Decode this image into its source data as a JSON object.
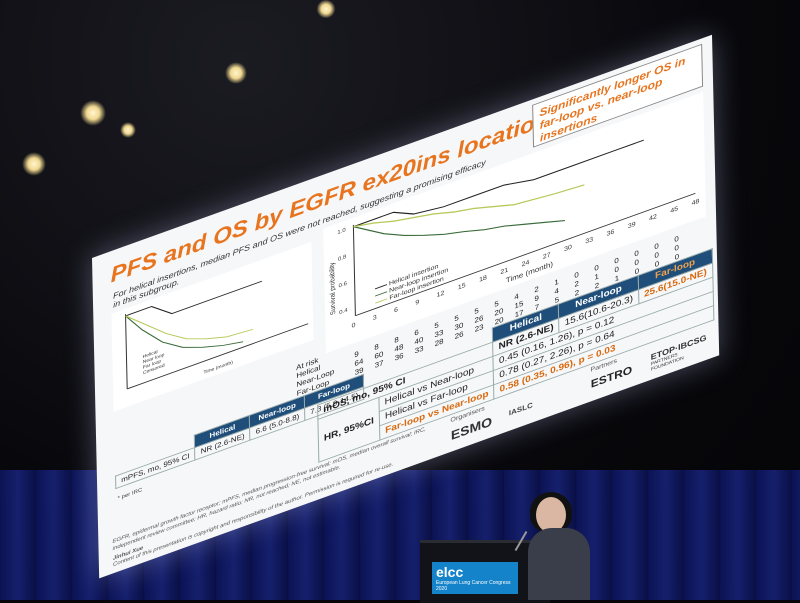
{
  "slide": {
    "title": "PFS and OS by EGFR ex20ins locations",
    "subtitle": "For helical insertions, median PFS and OS were not reached, suggesting a promising efficacy in this subgroup.",
    "callout": "Significantly longer OS in far-loop vs. near-loop insertions",
    "pfs_table": {
      "headers": [
        "Helical",
        "Near-loop",
        "Far-loop"
      ],
      "row_label": "mPFS, mo, 95% CI",
      "values": [
        "NR (2.6-NE)",
        "6.6 (5.0-8.8)",
        "7.3 (5.9-14.5)"
      ],
      "note": "* per IRC"
    },
    "os_table": {
      "headers": [
        "Helical",
        "Near-loop",
        "Far-loop"
      ],
      "mos_label": "mOS, mo, 95% CI",
      "mos_values": [
        "NR (2.6-NE)",
        "15.6(10.6-20.3)",
        "25.6(15.0-NE)"
      ],
      "hr_label": "HR, 95%CI",
      "comparisons": [
        {
          "label": "Helical vs Near-loop",
          "value": "0.45 (0.16, 1.26), p = 0.12"
        },
        {
          "label": "Helical vs Far-loop",
          "value": "0.78 (0.27, 2.26), p = 0.64"
        },
        {
          "label": "Far-loop vs Near-loop",
          "value": "0.58 (0.35, 0.96), p = 0.03"
        }
      ]
    },
    "os_chart": {
      "ylabel": "Survival probability",
      "xlabel": "Time (month)",
      "legend": [
        "Helical insertion",
        "Near-loop insertion",
        "Far-loop insertion"
      ],
      "ticks": [
        "0",
        "3",
        "6",
        "9",
        "12",
        "15",
        "18",
        "21",
        "24",
        "27",
        "30",
        "33",
        "36",
        "39",
        "42",
        "45",
        "48"
      ],
      "at_risk_label": "At risk",
      "at_risk_rows": [
        {
          "name": "Helical",
          "values": [
            "9",
            "8",
            "8",
            "6",
            "5",
            "5",
            "5",
            "5",
            "4",
            "2",
            "1",
            "0",
            "0",
            "0",
            "0",
            "0",
            "0"
          ]
        },
        {
          "name": "Near-Loop",
          "values": [
            "64",
            "60",
            "48",
            "40",
            "33",
            "30",
            "26",
            "20",
            "15",
            "9",
            "4",
            "2",
            "1",
            "0",
            "0",
            "0",
            "0"
          ]
        },
        {
          "name": "Far-Loop",
          "values": [
            "39",
            "37",
            "36",
            "33",
            "28",
            "26",
            "23",
            "20",
            "17",
            "7",
            "5",
            "2",
            "2",
            "1",
            "0",
            "0",
            "0"
          ]
        }
      ],
      "y_ticks": [
        "1.0",
        "0.8",
        "0.6",
        "0.4"
      ]
    },
    "pfs_chart": {
      "legend": [
        "Helical",
        "Near loop",
        "Far loop",
        "Censored"
      ],
      "xlabel": "Time (month)"
    },
    "footnote": "EGFR, epidermal growth factor receptor; mPFS, median progression-free survival; mOS, median overall survival; IRC, independent review committee; HR, hazard ratio; NR, not reached; NE, not estimable.",
    "author": "Jinhui Xue",
    "copyright": "Content of this presentation is copyright and responsibility of the author. Permission is required for re-use.",
    "organisers_label": "Organisers",
    "partners_label": "Partners",
    "logos": [
      "ESMO",
      "IASLC",
      "ESTRO",
      "ETOP·IBCSG"
    ],
    "etop_sub": "PARTNERS FOUNDATION"
  },
  "stage": {
    "lectern_brand": "elcc",
    "lectern_sub": "European Lung Cancer Congress 2020"
  },
  "colors": {
    "accent_orange": "#e8741e",
    "header_blue": "#1f4e7a",
    "helical": "#222222",
    "near_loop": "#3a6b3a",
    "far_loop": "#b7c95a"
  }
}
